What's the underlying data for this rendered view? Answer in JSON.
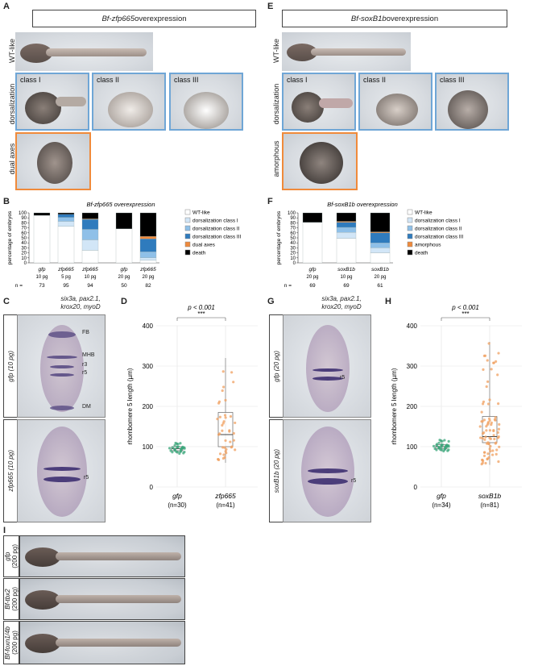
{
  "panelA": {
    "letter": "A",
    "title_gene": "Bf-zfp665",
    "title_rest": " overexpression",
    "row_wt": "WT-like",
    "row_dorsal": "dorsalization",
    "row_dual": "dual axes",
    "classes": [
      "class I",
      "class II",
      "class III"
    ]
  },
  "panelE": {
    "letter": "E",
    "title_gene": "Bf-soxB1b",
    "title_rest": " overexpression",
    "row_wt": "WT-like",
    "row_dorsal": "dorsalization",
    "row_amorph": "amorphous",
    "classes": [
      "class I",
      "class II",
      "class III"
    ]
  },
  "panelB": {
    "letter": "B",
    "chart_data": {
      "type": "bar",
      "stacked": true,
      "title": "Bf-zfp665 overexpression",
      "ylabel": "percentage of embryos",
      "ylim": [
        0,
        100
      ],
      "yticks": [
        0,
        10,
        20,
        30,
        40,
        50,
        60,
        70,
        80,
        90,
        100
      ],
      "categories": [
        "gfp",
        "zfp665",
        "zfp665",
        "gfp",
        "zfp665"
      ],
      "doses": [
        "10 pg",
        "5 pg",
        "10 pg",
        "20 pg",
        "20 pg"
      ],
      "n_label": "n =",
      "n": [
        "73",
        "95",
        "94",
        "50",
        "82"
      ],
      "series": [
        {
          "name": "WT-like",
          "color": "#ffffff",
          "values": [
            95,
            73,
            25,
            68,
            5
          ]
        },
        {
          "name": "dorsalization class I",
          "color": "#d2e6f7",
          "values": [
            0,
            10,
            21,
            0,
            5
          ]
        },
        {
          "name": "dorsalization class II",
          "color": "#8fc0e8",
          "values": [
            0,
            8,
            21,
            0,
            12
          ]
        },
        {
          "name": "dorsalization class III",
          "color": "#2f7bbd",
          "values": [
            0,
            6,
            20,
            0,
            26
          ]
        },
        {
          "name": "dual axes",
          "color": "#ef8a3c",
          "values": [
            0,
            0,
            1,
            0,
            5
          ]
        },
        {
          "name": "death",
          "color": "#000000",
          "values": [
            5,
            3,
            12,
            32,
            47
          ]
        }
      ]
    }
  },
  "panelF": {
    "letter": "F",
    "chart_data": {
      "type": "bar",
      "stacked": true,
      "title": "Bf-soxB1b overexpression",
      "ylabel": "percentage of embryos",
      "ylim": [
        0,
        100
      ],
      "yticks": [
        0,
        10,
        20,
        30,
        40,
        50,
        60,
        70,
        80,
        90,
        100
      ],
      "categories": [
        "gfp",
        "soxB1b",
        "soxB1b"
      ],
      "doses": [
        "20 pg",
        "10 pg",
        "20 pg"
      ],
      "n_label": "n =",
      "n": [
        "69",
        "69",
        "61"
      ],
      "series": [
        {
          "name": "WT-like",
          "color": "#ffffff",
          "values": [
            81,
            49,
            20
          ]
        },
        {
          "name": "dorsalization class I",
          "color": "#d2e6f7",
          "values": [
            0,
            12,
            10
          ]
        },
        {
          "name": "dorsalization class II",
          "color": "#8fc0e8",
          "values": [
            0,
            10,
            10
          ]
        },
        {
          "name": "dorsalization class III",
          "color": "#2f7bbd",
          "values": [
            0,
            10,
            20
          ]
        },
        {
          "name": "amorphous",
          "color": "#ef8a3c",
          "values": [
            0,
            2,
            2
          ]
        },
        {
          "name": "death",
          "color": "#000000",
          "values": [
            19,
            17,
            38
          ]
        }
      ]
    }
  },
  "panelC": {
    "letter": "C",
    "stain": "six3a, pax2.1,",
    "stain2": "krox20, myoD",
    "img1_label": "gfp (10 pg)",
    "img2_label": "zfp665 (10 pg)",
    "markers": [
      "FB",
      "MHB",
      "r3",
      "r5",
      "DM"
    ],
    "marker_r5b": "r5"
  },
  "panelG": {
    "letter": "G",
    "stain": "six3a, pax2.1,",
    "stain2": "krox20, myoD",
    "img1_label": "gfp (20 pg)",
    "img2_label": "soxB1b (20 pg)",
    "marker_r5": "r5",
    "marker_r5b": "r5"
  },
  "panelD": {
    "letter": "D",
    "chart_data": {
      "type": "scatter",
      "ylabel": "rhombomere 5 length (µm)",
      "ylim": [
        0,
        400
      ],
      "yticks": [
        0,
        100,
        200,
        300,
        400
      ],
      "pvalue": "p < 0.001",
      "stars": "***",
      "groups": [
        {
          "name": "gfp",
          "n": "(n=30)",
          "color": "#3aa57a",
          "median": 95,
          "q1": 90,
          "q3": 100,
          "min": 82,
          "max": 110
        },
        {
          "name": "zfp665",
          "n": "(n=41)",
          "color": "#f0a060",
          "median": 130,
          "q1": 100,
          "q3": 185,
          "min": 60,
          "max": 320
        }
      ]
    }
  },
  "panelH": {
    "letter": "H",
    "chart_data": {
      "type": "scatter",
      "ylabel": "rhombomere 5 length (µm)",
      "ylim": [
        0,
        400
      ],
      "yticks": [
        0,
        100,
        200,
        300,
        400
      ],
      "pvalue": "p < 0.001",
      "stars": "***",
      "groups": [
        {
          "name": "gfp",
          "n": "(n=34)",
          "color": "#3aa57a",
          "median": 100,
          "q1": 95,
          "q3": 105,
          "min": 88,
          "max": 118
        },
        {
          "name": "soxB1b",
          "n": "(n=81)",
          "color": "#f0a060",
          "median": 125,
          "q1": 110,
          "q3": 175,
          "min": 55,
          "max": 360
        }
      ]
    }
  },
  "panelI": {
    "letter": "I",
    "rows": [
      {
        "gene": "gfp",
        "dose": "(200 pg)"
      },
      {
        "gene": "Bf-tbx2",
        "dose": "(200 pg)"
      },
      {
        "gene": "Bf-foxn1/4b",
        "dose": "(200 pg)"
      }
    ]
  }
}
